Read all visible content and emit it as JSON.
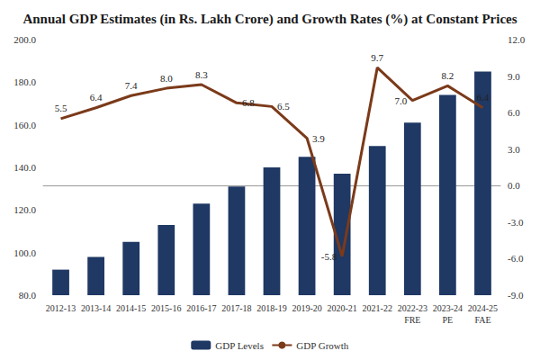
{
  "chart_data": {
    "type": "bar",
    "title": "Annual GDP Estimates (in Rs. Lakh Crore) and Growth Rates (%) at Constant Prices",
    "categories": [
      "2012-13",
      "2013-14",
      "2014-15",
      "2015-16",
      "2016-17",
      "2017-18",
      "2018-19",
      "2019-20",
      "2020-21",
      "2021-22",
      "2022-23\nFRE",
      "2023-24\nPE",
      "2024-25\nFAE"
    ],
    "series": [
      {
        "name": "GDP Levels",
        "type": "bar",
        "color": "#1f3864",
        "values": [
          92,
          98,
          105,
          113,
          123,
          131,
          140,
          145,
          137,
          150,
          161,
          174,
          185
        ]
      },
      {
        "name": "GDP Growth",
        "type": "line",
        "axis": "y2",
        "color": "#7b3a1a",
        "marker": "none",
        "data_labels": true,
        "values": [
          5.5,
          6.4,
          7.4,
          8.0,
          8.3,
          6.8,
          6.5,
          3.9,
          -5.8,
          9.7,
          7.0,
          8.2,
          6.4
        ],
        "value_labels": [
          "5.5",
          "6.4",
          "7.4",
          "8.0",
          "8.3",
          "6.8",
          "6.5",
          "3.9",
          "-5.8",
          "9.7",
          "7.0",
          "8.2",
          "6.4"
        ]
      }
    ],
    "ylim": [
      80,
      200
    ],
    "yticks": [
      {
        "value": 80,
        "label": "80.0"
      },
      {
        "value": 100,
        "label": "100.0"
      },
      {
        "value": 120,
        "label": "120.0"
      },
      {
        "value": 140,
        "label": "140.0"
      },
      {
        "value": 160,
        "label": "160.0"
      },
      {
        "value": 180,
        "label": "180.0"
      },
      {
        "value": 200,
        "label": "200.0"
      }
    ],
    "y2lim": [
      -9,
      12
    ],
    "y2ticks": [
      {
        "value": -9,
        "label": "-9.0"
      },
      {
        "value": -6,
        "label": "-6.0"
      },
      {
        "value": -3,
        "label": "-3.0"
      },
      {
        "value": 0,
        "label": "0.0"
      },
      {
        "value": 3,
        "label": "3.0"
      },
      {
        "value": 6,
        "label": "6.0"
      },
      {
        "value": 9,
        "label": "9.0"
      },
      {
        "value": 12,
        "label": "12.0"
      }
    ],
    "grid": false,
    "legend": "bottom"
  }
}
